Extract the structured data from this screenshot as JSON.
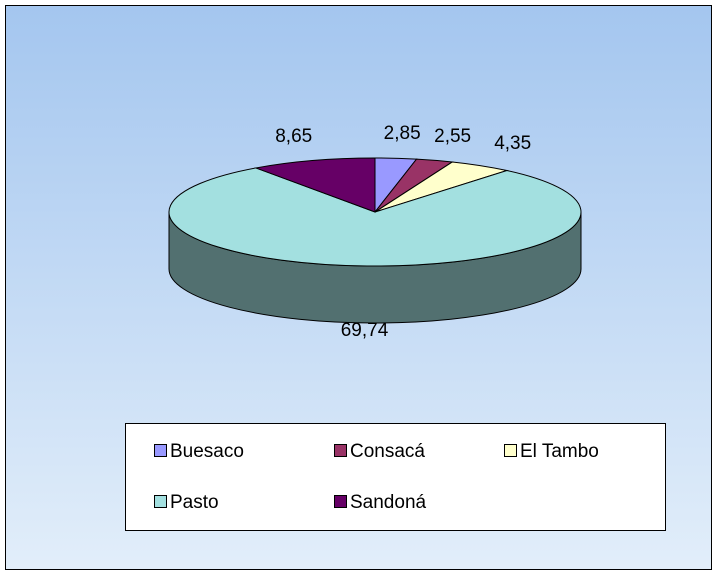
{
  "chart_data": {
    "type": "pie3d",
    "categories": [
      "Buesaco",
      "Consacá",
      "El Tambo",
      "Pasto",
      "Sandoná"
    ],
    "values": [
      2.85,
      2.55,
      4.35,
      69.74,
      8.65
    ],
    "value_labels": [
      "2,85",
      "2,55",
      "4,35",
      "69,74",
      "8,65"
    ],
    "colors": [
      "#9999ff",
      "#993366",
      "#ffffcc",
      "#a3e0e0",
      "#660066"
    ],
    "legend": "bottom"
  }
}
